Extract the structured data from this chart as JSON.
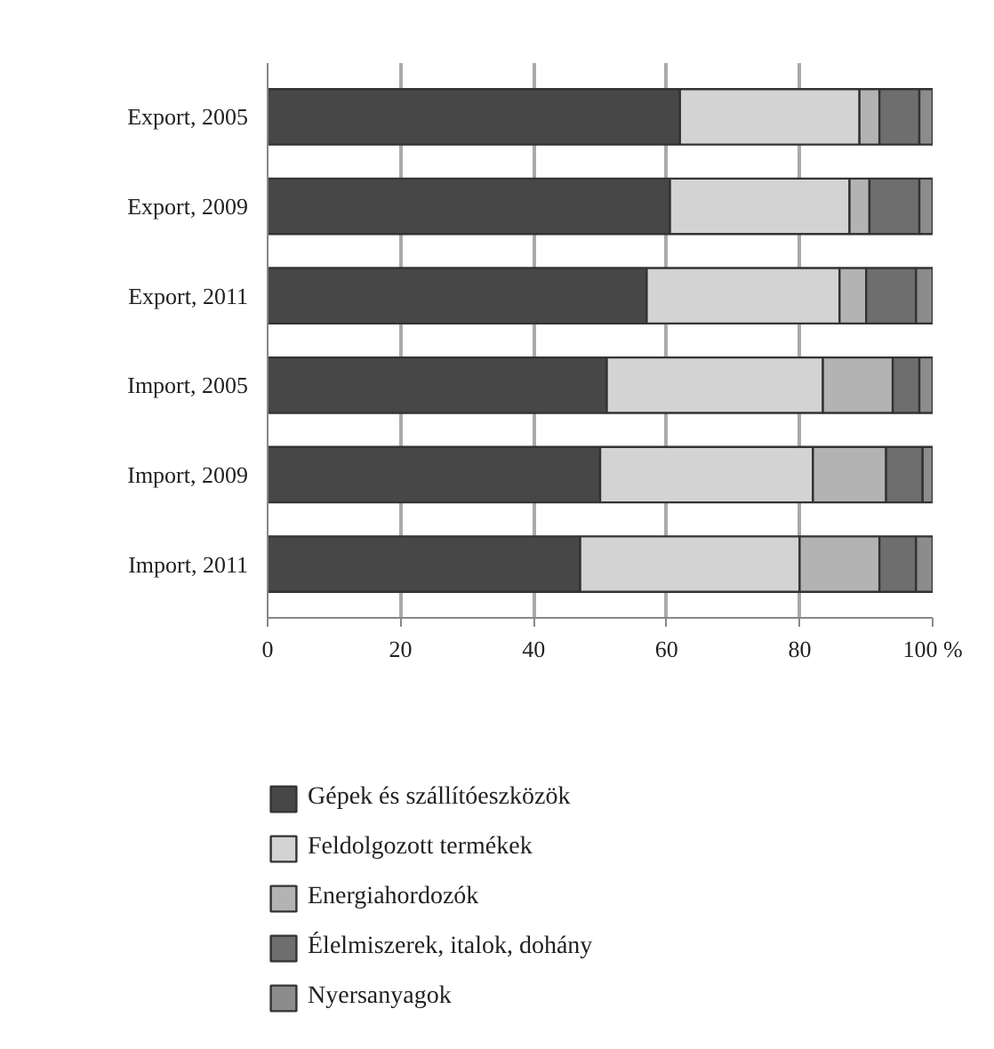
{
  "chart_data": {
    "type": "bar",
    "orientation": "horizontal",
    "stacked": true,
    "categories": [
      "Export, 2005",
      "Export, 2009",
      "Export, 2011",
      "Import, 2005",
      "Import, 2009",
      "Import, 2011"
    ],
    "series": [
      {
        "name": "Gépek és szállítóeszközök",
        "color": "#474747",
        "values": [
          62,
          60.5,
          57,
          51,
          50,
          47
        ]
      },
      {
        "name": "Feldolgozott termékek",
        "color": "#d3d3d3",
        "values": [
          27,
          27,
          29,
          32.5,
          32,
          33
        ]
      },
      {
        "name": "Energiahordozók",
        "color": "#b3b3b3",
        "values": [
          3,
          3,
          4,
          10.5,
          11,
          12
        ]
      },
      {
        "name": "Élelmiszerek, italok, dohány",
        "color": "#6e6e6e",
        "values": [
          6,
          7.5,
          7.5,
          4,
          5.5,
          5.5
        ]
      },
      {
        "name": "Nyersanyagok",
        "color": "#8c8c8c",
        "values": [
          2,
          2,
          2.5,
          2,
          1.5,
          2.5
        ]
      }
    ],
    "xlim": [
      0,
      100
    ],
    "xticks": [
      0,
      20,
      40,
      60,
      80,
      {
        "value": 100,
        "label": "100 %"
      }
    ],
    "grid": "x",
    "legend": "bottom"
  }
}
